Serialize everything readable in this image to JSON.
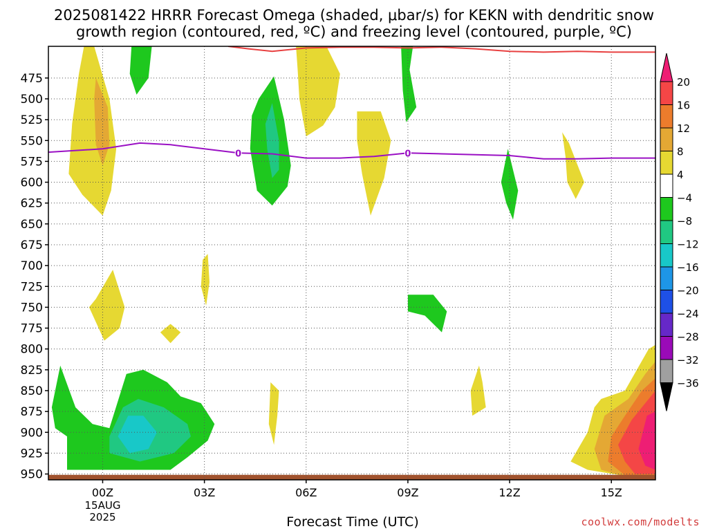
{
  "title_line1": "2025081422 HRRR Forecast Omega (shaded, μbar/s) for KEKN with dendritic snow",
  "title_line2": "growth region (contoured, red, ºC) and freezing level (contoured, purple, ºC)",
  "xlabel": "Forecast Time (UTC)",
  "credit": "coolwx.com/modelts",
  "chart_data": {
    "type": "heatmap",
    "title": "2025081422 HRRR Forecast Omega (shaded, μbar/s) for KEKN with dendritic snow growth region (contoured, red, ºC) and freezing level (contoured, purple, ºC)",
    "xlabel": "Forecast Time (UTC)",
    "ylabel": "",
    "x_range_hours": [
      -1.6,
      16.3
    ],
    "y_range_hpa": [
      437,
      957
    ],
    "y_axis": "pressure (inverted)",
    "grid": true,
    "x_ticks": [
      {
        "hour": 0,
        "label": "00Z",
        "sub1": "15AUG",
        "sub2": "2025"
      },
      {
        "hour": 3,
        "label": "03Z"
      },
      {
        "hour": 6,
        "label": "06Z"
      },
      {
        "hour": 9,
        "label": "09Z"
      },
      {
        "hour": 12,
        "label": "12Z"
      },
      {
        "hour": 15,
        "label": "15Z"
      }
    ],
    "y_ticks": [
      475,
      500,
      525,
      550,
      575,
      600,
      625,
      650,
      675,
      700,
      725,
      750,
      775,
      800,
      825,
      850,
      875,
      900,
      925,
      950
    ],
    "colorbar": {
      "levels": [
        -36,
        -32,
        -28,
        -24,
        -20,
        -16,
        -12,
        -8,
        -4,
        4,
        8,
        12,
        16,
        20
      ],
      "labels": [
        "20",
        "16",
        "12",
        "8",
        "4",
        "−4",
        "−8",
        "−12",
        "−16",
        "−20",
        "−24",
        "−28",
        "−32",
        "−36"
      ],
      "colors_high_to_low": [
        "#ee1e74",
        "#f44646",
        "#ec7c2c",
        "#e4a834",
        "#e6d832",
        "#ffffff",
        "#1ec81e",
        "#20c882",
        "#18c8c8",
        "#1e96e6",
        "#1e50e6",
        "#6628c8",
        "#9a0ab8",
        "#a0a0a0",
        "#000000"
      ]
    },
    "freezing_level": {
      "color": "#9a10c4",
      "label": "0",
      "label_hours": [
        4.0,
        9.0
      ],
      "points": [
        [
          -1.6,
          564
        ],
        [
          0,
          560
        ],
        [
          1.1,
          553
        ],
        [
          2.0,
          555
        ],
        [
          3.0,
          560
        ],
        [
          4.0,
          565
        ],
        [
          5.0,
          566
        ],
        [
          6.0,
          571
        ],
        [
          7.0,
          571
        ],
        [
          8.0,
          569
        ],
        [
          9.0,
          565
        ],
        [
          10.0,
          566
        ],
        [
          11.0,
          567
        ],
        [
          12.0,
          568
        ],
        [
          13.0,
          572
        ],
        [
          14.0,
          572
        ],
        [
          15.0,
          571
        ],
        [
          16.3,
          571
        ]
      ]
    },
    "dgz_contour": {
      "color": "#e84040",
      "points": [
        [
          3.7,
          437
        ],
        [
          4.3,
          440
        ],
        [
          5.0,
          443
        ],
        [
          6.0,
          439
        ],
        [
          7.0,
          438
        ],
        [
          8.0,
          438
        ],
        [
          9.0,
          439
        ],
        [
          10.0,
          438
        ],
        [
          11.0,
          440
        ],
        [
          12.0,
          443
        ],
        [
          13.0,
          444
        ],
        [
          14.0,
          443
        ],
        [
          15.0,
          444
        ],
        [
          16.3,
          444
        ]
      ]
    },
    "omega_regions": [
      {
        "value": 4,
        "pts": [
          [
            -0.55,
            437
          ],
          [
            -0.25,
            437
          ],
          [
            0.2,
            500
          ],
          [
            0.4,
            560
          ],
          [
            0.25,
            610
          ],
          [
            0,
            640
          ],
          [
            -0.6,
            615
          ],
          [
            -1.0,
            590
          ],
          [
            -0.9,
            530
          ],
          [
            -0.7,
            470
          ]
        ]
      },
      {
        "value": 8,
        "pts": [
          [
            -0.2,
            475
          ],
          [
            0.15,
            510
          ],
          [
            0.2,
            555
          ],
          [
            0,
            580
          ],
          [
            -0.2,
            555
          ],
          [
            -0.25,
            500
          ]
        ]
      },
      {
        "value": -4,
        "pts": [
          [
            0.85,
            437
          ],
          [
            1.45,
            437
          ],
          [
            1.35,
            475
          ],
          [
            1.0,
            495
          ],
          [
            0.8,
            470
          ]
        ]
      },
      {
        "value": -4,
        "pts": [
          [
            4.6,
            500
          ],
          [
            5.05,
            473
          ],
          [
            5.35,
            525
          ],
          [
            5.55,
            580
          ],
          [
            5.45,
            605
          ],
          [
            5.0,
            628
          ],
          [
            4.55,
            610
          ],
          [
            4.35,
            560
          ],
          [
            4.4,
            520
          ]
        ]
      },
      {
        "value": -8,
        "pts": [
          [
            4.8,
            530
          ],
          [
            5.0,
            505
          ],
          [
            5.2,
            550
          ],
          [
            5.2,
            585
          ],
          [
            5.0,
            595
          ],
          [
            4.85,
            560
          ]
        ]
      },
      {
        "value": 4,
        "pts": [
          [
            5.7,
            437
          ],
          [
            6.6,
            437
          ],
          [
            7.0,
            470
          ],
          [
            6.85,
            510
          ],
          [
            6.5,
            532
          ],
          [
            6.0,
            545
          ],
          [
            5.8,
            500
          ],
          [
            5.75,
            465
          ]
        ]
      },
      {
        "value": 4,
        "pts": [
          [
            7.5,
            515
          ],
          [
            8.2,
            515
          ],
          [
            8.5,
            550
          ],
          [
            8.3,
            595
          ],
          [
            7.9,
            640
          ],
          [
            7.65,
            590
          ],
          [
            7.5,
            550
          ]
        ]
      },
      {
        "value": -4,
        "pts": [
          [
            8.8,
            437
          ],
          [
            9.15,
            437
          ],
          [
            9.05,
            465
          ],
          [
            9.25,
            510
          ],
          [
            8.95,
            528
          ],
          [
            8.85,
            490
          ]
        ]
      },
      {
        "value": -4,
        "pts": [
          [
            11.95,
            560
          ],
          [
            12.25,
            610
          ],
          [
            12.1,
            645
          ],
          [
            11.9,
            625
          ],
          [
            11.75,
            600
          ]
        ]
      },
      {
        "value": 4,
        "pts": [
          [
            13.55,
            540
          ],
          [
            13.75,
            553
          ],
          [
            14.2,
            600
          ],
          [
            13.95,
            620
          ],
          [
            13.7,
            600
          ],
          [
            13.65,
            570
          ]
        ]
      },
      {
        "value": 4,
        "pts": [
          [
            2.95,
            693
          ],
          [
            3.1,
            686
          ],
          [
            3.15,
            720
          ],
          [
            3.05,
            748
          ],
          [
            2.9,
            725
          ]
        ]
      },
      {
        "value": 4,
        "pts": [
          [
            -0.2,
            740
          ],
          [
            0.3,
            705
          ],
          [
            0.65,
            750
          ],
          [
            0.5,
            775
          ],
          [
            0.05,
            790
          ],
          [
            -0.4,
            750
          ]
        ]
      },
      {
        "value": 4,
        "pts": [
          [
            1.7,
            780
          ],
          [
            2.0,
            770
          ],
          [
            2.3,
            780
          ],
          [
            2.0,
            793
          ]
        ]
      },
      {
        "value": -4,
        "pts": [
          [
            9.0,
            735
          ],
          [
            9.75,
            735
          ],
          [
            10.15,
            755
          ],
          [
            10.0,
            780
          ],
          [
            9.5,
            760
          ],
          [
            9.0,
            755
          ]
        ]
      },
      {
        "value": 4,
        "pts": [
          [
            11.1,
            820
          ],
          [
            11.2,
            840
          ],
          [
            11.3,
            870
          ],
          [
            10.9,
            880
          ],
          [
            10.85,
            850
          ]
        ]
      },
      {
        "value": 4,
        "pts": [
          [
            4.95,
            840
          ],
          [
            5.2,
            850
          ],
          [
            5.15,
            880
          ],
          [
            5.05,
            915
          ],
          [
            4.9,
            890
          ]
        ]
      },
      {
        "value": -4,
        "pts": [
          [
            -1.5,
            870
          ],
          [
            -1.25,
            820
          ],
          [
            -0.8,
            870
          ],
          [
            -0.3,
            890
          ],
          [
            0.2,
            895
          ],
          [
            0.7,
            830
          ],
          [
            1.2,
            825
          ],
          [
            1.9,
            840
          ],
          [
            2.3,
            857
          ],
          [
            2.9,
            865
          ],
          [
            3.3,
            890
          ],
          [
            3.1,
            910
          ],
          [
            2.5,
            930
          ],
          [
            2.0,
            945
          ],
          [
            1.2,
            945
          ],
          [
            -1.05,
            945
          ],
          [
            -1.05,
            905
          ],
          [
            -1.4,
            895
          ]
        ]
      },
      {
        "value": -8,
        "pts": [
          [
            0.2,
            905
          ],
          [
            0.6,
            870
          ],
          [
            1.05,
            860
          ],
          [
            1.8,
            870
          ],
          [
            2.5,
            890
          ],
          [
            2.6,
            905
          ],
          [
            2.1,
            925
          ],
          [
            1.1,
            935
          ],
          [
            0.2,
            925
          ]
        ]
      },
      {
        "value": -12,
        "pts": [
          [
            0.45,
            905
          ],
          [
            0.75,
            880
          ],
          [
            1.2,
            880
          ],
          [
            1.6,
            900
          ],
          [
            1.35,
            920
          ],
          [
            0.8,
            925
          ]
        ]
      },
      {
        "value": 4,
        "pts": [
          [
            16.3,
            795
          ],
          [
            16.3,
            955
          ],
          [
            15.8,
            955
          ],
          [
            14.3,
            945
          ],
          [
            13.8,
            935
          ],
          [
            14.3,
            900
          ],
          [
            14.5,
            870
          ],
          [
            14.7,
            860
          ],
          [
            15.4,
            850
          ],
          [
            16.1,
            800
          ]
        ]
      },
      {
        "value": 8,
        "pts": [
          [
            16.3,
            815
          ],
          [
            16.3,
            955
          ],
          [
            15.6,
            955
          ],
          [
            14.7,
            945
          ],
          [
            14.5,
            920
          ],
          [
            14.8,
            880
          ],
          [
            15.5,
            860
          ],
          [
            16.0,
            830
          ]
        ]
      },
      {
        "value": 12,
        "pts": [
          [
            16.3,
            835
          ],
          [
            16.3,
            955
          ],
          [
            15.5,
            955
          ],
          [
            14.9,
            935
          ],
          [
            15.0,
            905
          ],
          [
            15.4,
            880
          ],
          [
            15.9,
            850
          ]
        ]
      },
      {
        "value": 16,
        "pts": [
          [
            16.3,
            850
          ],
          [
            16.3,
            950
          ],
          [
            15.7,
            950
          ],
          [
            15.4,
            935
          ],
          [
            15.2,
            915
          ],
          [
            15.6,
            885
          ]
        ]
      },
      {
        "value": 20,
        "pts": [
          [
            16.3,
            875
          ],
          [
            16.3,
            945
          ],
          [
            16.0,
            940
          ],
          [
            15.8,
            920
          ],
          [
            16.05,
            880
          ]
        ]
      }
    ]
  }
}
